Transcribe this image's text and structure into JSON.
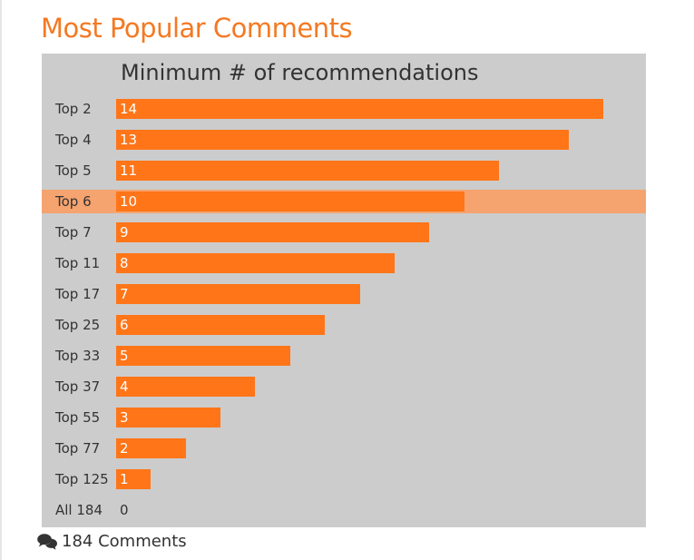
{
  "header": {
    "title": "Most Popular Comments"
  },
  "comments": {
    "label": "184 Comments",
    "icon": "comments-icon"
  },
  "colors": {
    "accent": "#f47922",
    "bar": "#ff7518",
    "highlight": "#f5a36f",
    "panel": "#cccccc",
    "text": "#333333"
  },
  "chart_data": {
    "type": "bar",
    "orientation": "horizontal",
    "title": "Minimum # of recommendations",
    "xlabel": "",
    "ylabel": "",
    "xlim": [
      0,
      14
    ],
    "grid": false,
    "legend": "none",
    "selected": "Top 6",
    "categories": [
      "Top 2",
      "Top 4",
      "Top 5",
      "Top 6",
      "Top 7",
      "Top 11",
      "Top 17",
      "Top 25",
      "Top 33",
      "Top 37",
      "Top 55",
      "Top 77",
      "Top 125",
      "All 184"
    ],
    "values": [
      14,
      13,
      11,
      10,
      9,
      8,
      7,
      6,
      5,
      4,
      3,
      2,
      1,
      0
    ]
  }
}
